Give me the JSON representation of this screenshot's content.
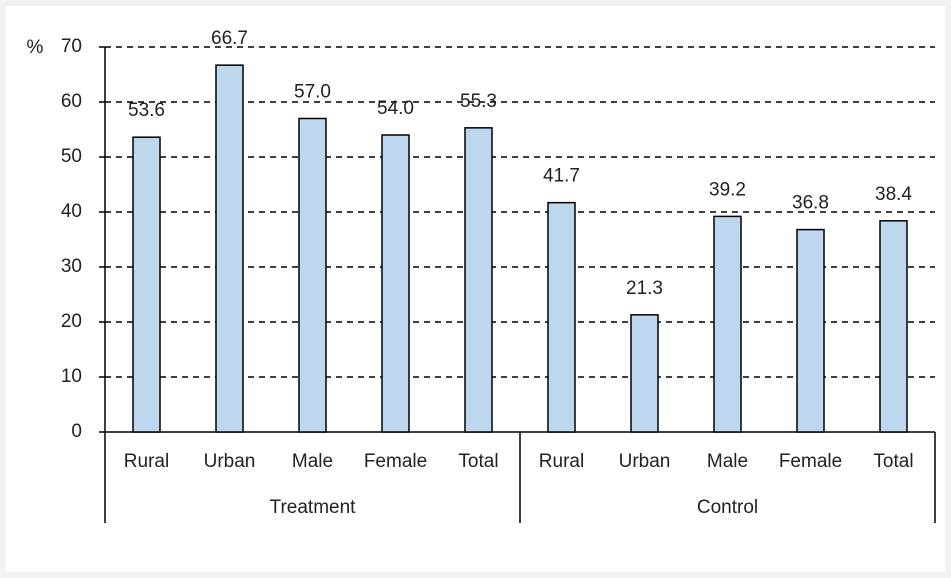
{
  "chart_data": {
    "type": "bar",
    "y_label": "%",
    "color": "#bdd7ee",
    "ylim": [
      0,
      70
    ],
    "yticks": [
      0,
      10,
      20,
      30,
      40,
      50,
      60,
      70
    ],
    "grid": true,
    "groups": [
      {
        "label": "Treatment",
        "categories": [
          "Rural",
          "Urban",
          "Male",
          "Female",
          "Total"
        ],
        "values": [
          53.6,
          66.7,
          57.0,
          54.0,
          55.3
        ],
        "value_labels": [
          "53.6",
          "66.7",
          "57.0",
          "54.0",
          "55.3"
        ]
      },
      {
        "label": "Control",
        "categories": [
          "Rural",
          "Urban",
          "Male",
          "Female",
          "Total"
        ],
        "values": [
          41.7,
          21.3,
          39.2,
          36.8,
          38.4
        ],
        "value_labels": [
          "41.7",
          "21.3",
          "39.2",
          "36.8",
          "38.4"
        ]
      }
    ]
  }
}
